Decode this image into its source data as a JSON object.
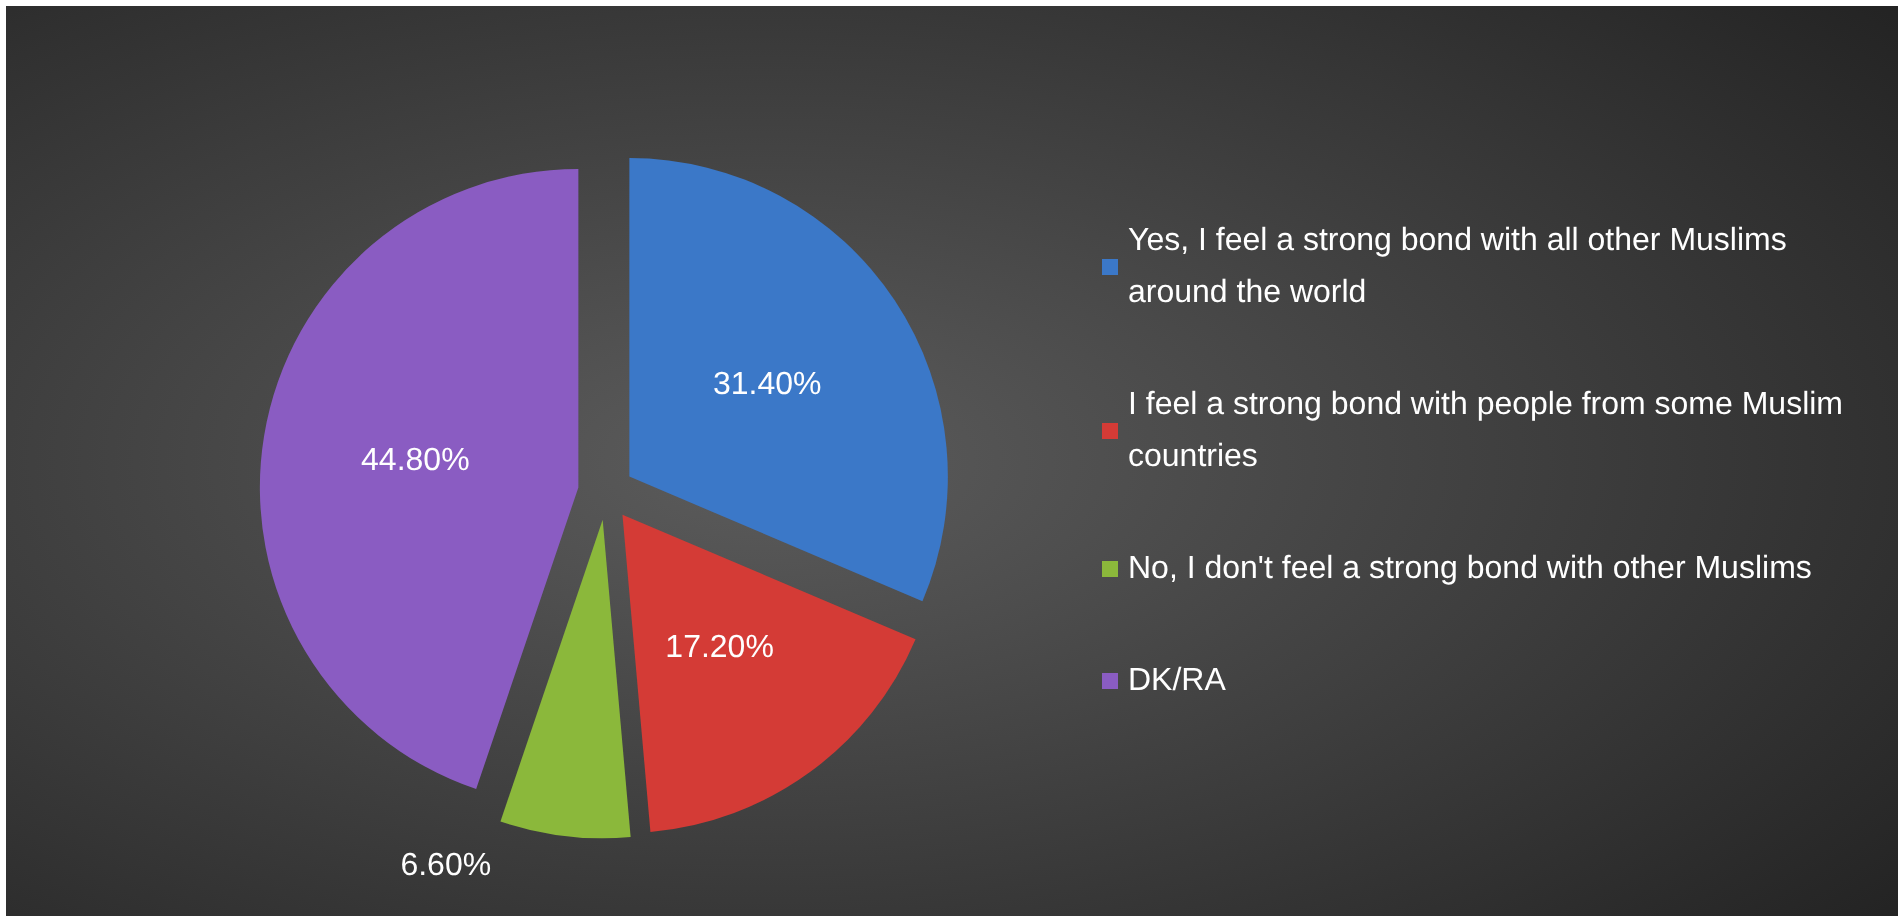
{
  "chart_data": {
    "type": "pie",
    "categories": [
      "Yes, I feel a strong bond with all other Muslims around the world",
      "I feel a strong bond with people from some Muslim countries",
      "No, I don't feel a strong bond with other Muslims",
      "DK/RA"
    ],
    "values": [
      31.4,
      17.2,
      6.6,
      44.8
    ],
    "colors": [
      "#3b78c8",
      "#d43b36",
      "#8bb83b",
      "#8a5cc2"
    ],
    "value_labels": [
      "31.40%",
      "17.20%",
      "6.60%",
      "44.80%"
    ],
    "legend": "right"
  }
}
